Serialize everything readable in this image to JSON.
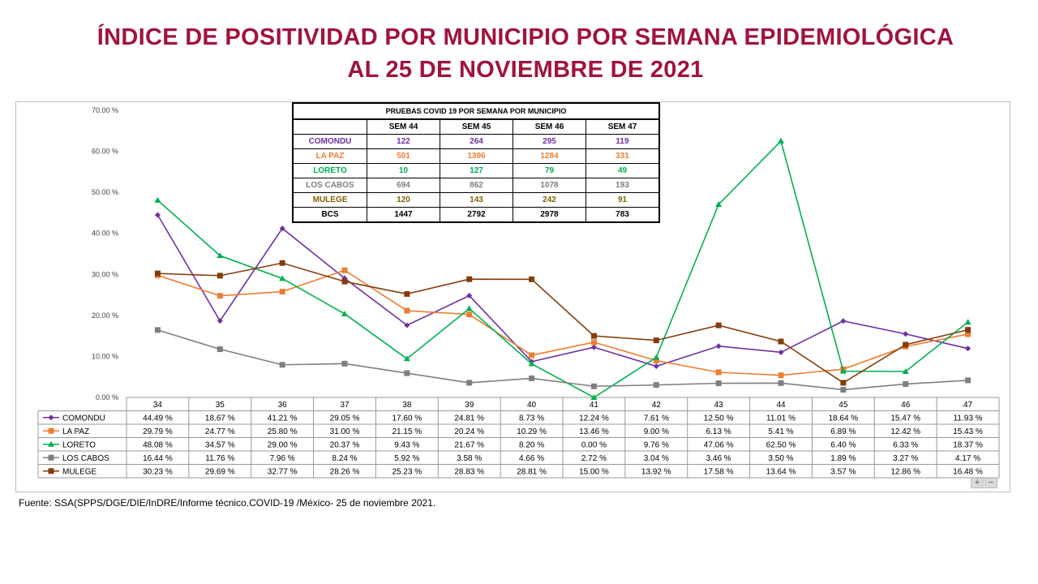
{
  "title_line1": "ÍNDICE DE POSITIVIDAD POR MUNICIPIO POR SEMANA EPIDEMIOLÓGICA",
  "title_line2": "AL 25 DE NOVIEMBRE DE 2021",
  "source": "Fuente: SSA(SPPS/DGE/DIE/InDRE/Informe técnico.COVID-19 /México- 25 de noviembre 2021.",
  "chart_data": {
    "type": "line",
    "categories": [
      "34",
      "35",
      "36",
      "37",
      "38",
      "39",
      "40",
      "41",
      "42",
      "43",
      "44",
      "45",
      "46",
      "47"
    ],
    "ylim": [
      0,
      70
    ],
    "yticks": [
      "0.00 %",
      "10.00 %",
      "20.00 %",
      "30.00 %",
      "40.00 %",
      "50.00 %",
      "60.00 %",
      "70.00 %"
    ],
    "grid": false,
    "legend": "data-table-bottom",
    "series": [
      {
        "name": "COMONDU",
        "color": "#7030a0",
        "marker": "diamond",
        "values": [
          44.49,
          18.67,
          41.21,
          29.05,
          17.6,
          24.81,
          8.73,
          12.24,
          7.61,
          12.5,
          11.01,
          18.64,
          15.47,
          11.93
        ],
        "labels": [
          "44.49 %",
          "18.67 %",
          "41.21 %",
          "29.05 %",
          "17.60 %",
          "24.81 %",
          "8.73 %",
          "12.24 %",
          "7.61 %",
          "12.50 %",
          "11.01 %",
          "18.64 %",
          "15.47 %",
          "11.93 %"
        ]
      },
      {
        "name": "LA PAZ",
        "color": "#ed7d31",
        "marker": "square",
        "values": [
          29.79,
          24.77,
          25.8,
          31.0,
          21.15,
          20.24,
          10.29,
          13.46,
          9.0,
          6.13,
          5.41,
          6.89,
          12.42,
          15.43
        ],
        "labels": [
          "29.79 %",
          "24.77 %",
          "25.80 %",
          "31.00 %",
          "21.15 %",
          "20.24 %",
          "10.29 %",
          "13.46 %",
          "9.00 %",
          "6.13 %",
          "5.41 %",
          "6.89 %",
          "12.42 %",
          "15.43 %"
        ]
      },
      {
        "name": "LORETO",
        "color": "#00b050",
        "marker": "triangle",
        "values": [
          48.08,
          34.57,
          29.0,
          20.37,
          9.43,
          21.67,
          8.2,
          0.0,
          9.76,
          47.06,
          62.5,
          6.4,
          6.33,
          18.37
        ],
        "labels": [
          "48.08 %",
          "34.57 %",
          "29.00 %",
          "20.37 %",
          "9.43 %",
          "21.67 %",
          "8.20 %",
          "0.00 %",
          "9.76 %",
          "47.06 %",
          "62.50 %",
          "6.40 %",
          "6.33 %",
          "18.37 %"
        ]
      },
      {
        "name": "LOS CABOS",
        "color": "#7f7f7f",
        "marker": "square",
        "values": [
          16.44,
          11.76,
          7.96,
          8.24,
          5.92,
          3.58,
          4.66,
          2.72,
          3.04,
          3.46,
          3.5,
          1.89,
          3.27,
          4.17
        ],
        "labels": [
          "16.44 %",
          "11.76 %",
          "7.96 %",
          "8.24 %",
          "5.92 %",
          "3.58 %",
          "4.66 %",
          "2.72 %",
          "3.04 %",
          "3.46 %",
          "3.50 %",
          "1.89 %",
          "3.27 %",
          "4.17 %"
        ]
      },
      {
        "name": "MULEGE",
        "color": "#843c0c",
        "marker": "square",
        "values": [
          30.23,
          29.69,
          32.77,
          28.26,
          25.23,
          28.83,
          28.81,
          15.0,
          13.92,
          17.58,
          13.64,
          3.57,
          12.86,
          16.48
        ],
        "labels": [
          "30.23 %",
          "29.69 %",
          "32.77 %",
          "28.26 %",
          "25.23 %",
          "28.83 %",
          "28.81 %",
          "15.00 %",
          "13.92 %",
          "17.58 %",
          "13.64 %",
          "3.57 %",
          "12.86 %",
          "16.48 %"
        ]
      }
    ]
  },
  "tests_table": {
    "caption": "PRUEBAS COVID 19 POR SEMANA POR MUNICIPIO",
    "headers": [
      "SEM 44",
      "SEM 45",
      "SEM 46",
      "SEM 47"
    ],
    "rows": [
      {
        "name": "COMONDU",
        "color": "#7030a0",
        "values": [
          "122",
          "264",
          "295",
          "119"
        ]
      },
      {
        "name": "LA PAZ",
        "color": "#ed7d31",
        "values": [
          "501",
          "1396",
          "1284",
          "331"
        ]
      },
      {
        "name": "LORETO",
        "color": "#00b050",
        "values": [
          "10",
          "127",
          "79",
          "49"
        ]
      },
      {
        "name": "LOS CABOS",
        "color": "#7f7f7f",
        "values": [
          "694",
          "862",
          "1078",
          "193"
        ]
      },
      {
        "name": "MULEGE",
        "color": "#7f6000",
        "values": [
          "120",
          "143",
          "242",
          "91"
        ]
      },
      {
        "name": "BCS",
        "color": "#000000",
        "values": [
          "1447",
          "2792",
          "2978",
          "783"
        ]
      }
    ]
  },
  "zoom": {
    "plus": "+",
    "minus": "−"
  }
}
